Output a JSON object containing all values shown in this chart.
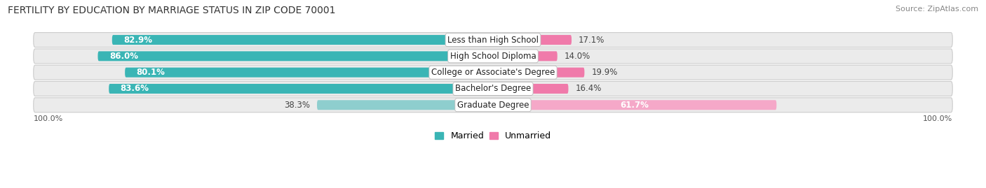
{
  "title": "FERTILITY BY EDUCATION BY MARRIAGE STATUS IN ZIP CODE 70001",
  "source": "Source: ZipAtlas.com",
  "categories": [
    "Less than High School",
    "High School Diploma",
    "College or Associate's Degree",
    "Bachelor's Degree",
    "Graduate Degree"
  ],
  "married": [
    82.9,
    86.0,
    80.1,
    83.6,
    38.3
  ],
  "unmarried": [
    17.1,
    14.0,
    19.9,
    16.4,
    61.7
  ],
  "married_color": "#3ab5b5",
  "married_color_light": "#8ecece",
  "unmarried_color": "#f07aaa",
  "unmarried_color_light": "#f5a8c8",
  "row_bg_color": "#ebebeb",
  "label_bg_color": "#ffffff",
  "title_fontsize": 10,
  "source_fontsize": 8,
  "bar_label_fontsize": 8.5,
  "category_fontsize": 8.5,
  "legend_fontsize": 9,
  "axis_label_fontsize": 8,
  "background_color": "#ffffff"
}
